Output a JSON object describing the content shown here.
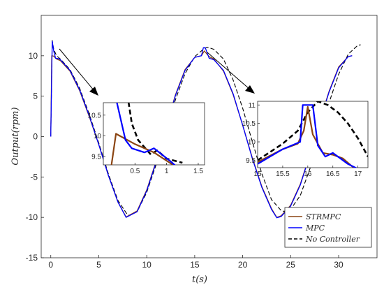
{
  "chart_data": {
    "type": "line",
    "xlabel": "t(s)",
    "ylabel": "Output(rpm)",
    "xlim": [
      -1,
      34
    ],
    "ylim": [
      -15,
      15
    ],
    "xticks": [
      0,
      5,
      10,
      15,
      20,
      25,
      30
    ],
    "yticks": [
      -15,
      -10,
      -5,
      0,
      5,
      10
    ],
    "legend_position": "bottom-right",
    "grid": false,
    "series": [
      {
        "name": "STRMPC",
        "color": "#8b4513",
        "style": "solid",
        "x": [
          0,
          0.1,
          0.3,
          0.6,
          1,
          2,
          3,
          4,
          5,
          6,
          7,
          7.85,
          9,
          10,
          11,
          12,
          13,
          14,
          15,
          15.7,
          16,
          16.5,
          17,
          18,
          19,
          20,
          21,
          22,
          23,
          23.55,
          24,
          25,
          26,
          27,
          28,
          29,
          30,
          31,
          31.4
        ],
        "y": [
          0,
          10.0,
          9.95,
          9.6,
          9.4,
          8.1,
          5.7,
          2.5,
          -1.0,
          -4.8,
          -8.1,
          -9.95,
          -9.2,
          -6.6,
          -3.0,
          1.2,
          5.2,
          8.3,
          9.8,
          10.0,
          10.6,
          9.9,
          9.6,
          8.1,
          5.2,
          1.4,
          -2.6,
          -6.2,
          -8.9,
          -10.0,
          -9.8,
          -8.5,
          -5.9,
          -2.2,
          1.8,
          5.6,
          8.6,
          9.9,
          10.0
        ]
      },
      {
        "name": "MPC",
        "color": "#0000ff",
        "style": "solid",
        "x": [
          0,
          0.15,
          0.3,
          0.5,
          0.8,
          1,
          2,
          3,
          4,
          5,
          6,
          7,
          7.85,
          9,
          10,
          11,
          12,
          13,
          14,
          15,
          15.7,
          15.9,
          16.1,
          16.5,
          17,
          18,
          19,
          20,
          21,
          22,
          23,
          23.55,
          24,
          25,
          26,
          27,
          28,
          29,
          30,
          31,
          31.4
        ],
        "y": [
          0,
          11.8,
          10.6,
          9.7,
          9.65,
          9.5,
          8.2,
          5.8,
          2.6,
          -1.0,
          -4.8,
          -8.1,
          -10.0,
          -9.3,
          -6.7,
          -3.1,
          1.1,
          5.1,
          8.2,
          9.8,
          10.0,
          11.0,
          11.0,
          9.7,
          9.5,
          8.2,
          5.3,
          1.4,
          -2.7,
          -6.3,
          -9.0,
          -10.05,
          -9.9,
          -8.6,
          -6.0,
          -2.3,
          1.7,
          5.5,
          8.5,
          9.9,
          10.0
        ]
      },
      {
        "name": "No Controller",
        "color": "#000000",
        "style": "dashed",
        "x": [
          0,
          0.15,
          0.3,
          0.6,
          1,
          2,
          3,
          4,
          5,
          6,
          7,
          8,
          8.2,
          9,
          10,
          11,
          12,
          13,
          14,
          15,
          16,
          16.3,
          16.5,
          17,
          18,
          19,
          20,
          21,
          22,
          23,
          24,
          24.3,
          25,
          26,
          27,
          28,
          29,
          30,
          31,
          32,
          32.3
        ],
        "y": [
          0,
          11.9,
          10.8,
          10.0,
          9.6,
          8.3,
          6.0,
          2.8,
          -0.8,
          -4.6,
          -7.9,
          -9.7,
          -9.75,
          -9.3,
          -6.9,
          -3.4,
          0.6,
          4.6,
          7.8,
          9.9,
          10.9,
          11.05,
          11.0,
          10.8,
          9.6,
          7.0,
          3.5,
          -0.6,
          -4.6,
          -7.8,
          -9.15,
          -9.25,
          -9.0,
          -7.3,
          -4.0,
          0.0,
          4.2,
          7.7,
          10.2,
          11.3,
          11.35
        ]
      }
    ],
    "insets": [
      {
        "xlim": [
          0,
          1.6
        ],
        "ylim": [
          9.3,
          10.8
        ],
        "xticks": [
          0.5,
          1,
          1.5
        ],
        "xtick_labels": [
          "0.5",
          "1",
          "1.5"
        ],
        "yticks": [
          9.5,
          10,
          10.5
        ],
        "ytick_labels": [
          "9.5",
          "10",
          "10.5"
        ],
        "series": [
          {
            "name": "STRMPC",
            "x": [
              0.1,
              0.2,
              0.5,
              0.8,
              1.1
            ],
            "y": [
              9.0,
              10.05,
              9.8,
              9.6,
              9.3
            ]
          },
          {
            "name": "MPC",
            "x": [
              0.15,
              0.2,
              0.35,
              0.45,
              0.65,
              0.8,
              1.05,
              1.2
            ],
            "y": [
              11.0,
              10.9,
              9.9,
              9.7,
              9.6,
              9.7,
              9.4,
              9.2
            ]
          },
          {
            "name": "No Controller",
            "x": [
              0.38,
              0.45,
              0.55,
              0.75,
              0.85,
              1.0,
              1.25
            ],
            "y": [
              11.0,
              10.3,
              9.9,
              9.55,
              9.65,
              9.45,
              9.35
            ]
          }
        ]
      },
      {
        "xlim": [
          15,
          17.2
        ],
        "ylim": [
          9.3,
          11.1
        ],
        "xticks": [
          15,
          15.5,
          16,
          16.5,
          17
        ],
        "xtick_labels": [
          "15",
          "15.5",
          "16",
          "16.5",
          "17"
        ],
        "yticks": [
          9.5,
          10,
          10.5,
          11
        ],
        "ytick_labels": [
          "9.5",
          "10",
          "10.5",
          "11"
        ],
        "series": [
          {
            "name": "STRMPC",
            "x": [
              15,
              15.5,
              15.8,
              15.92,
              16.0,
              16.1,
              16.3,
              16.5,
              16.7,
              17.0
            ],
            "y": [
              9.45,
              9.8,
              9.95,
              10.3,
              10.95,
              10.2,
              9.7,
              9.65,
              9.55,
              9.2
            ]
          },
          {
            "name": "MPC",
            "x": [
              15,
              15.5,
              15.85,
              15.9,
              16.1,
              16.2,
              16.35,
              16.5,
              16.8,
              17.1
            ],
            "y": [
              9.4,
              9.8,
              10.0,
              11.0,
              11.0,
              9.9,
              9.6,
              9.7,
              9.4,
              9.2
            ]
          },
          {
            "name": "No Controller",
            "x": [
              15,
              15.5,
              15.8,
              16.0,
              16.2,
              16.4,
              16.6,
              16.8,
              17.0,
              17.2
            ],
            "y": [
              9.5,
              9.95,
              10.3,
              10.8,
              11.1,
              11.0,
              10.8,
              10.5,
              10.1,
              9.6
            ]
          }
        ]
      }
    ]
  }
}
